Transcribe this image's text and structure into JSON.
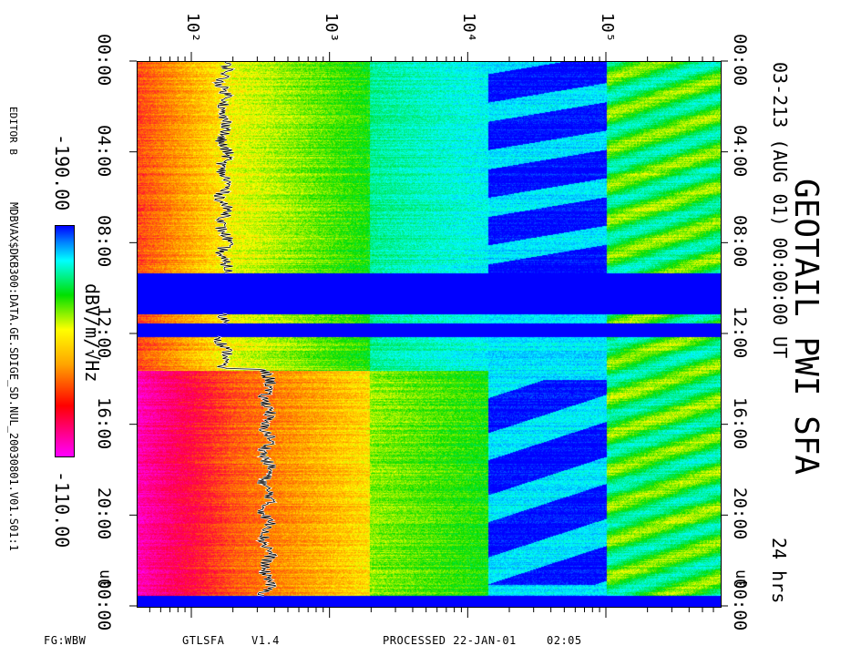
{
  "header": {
    "title": "GEOTAIL PWI SFA",
    "subtitle": "03-213 (AUG 01) 00:00:00 UT",
    "duration": "24 hrs"
  },
  "side": {
    "editor": "EDITOR B",
    "data_path": "MDBVAX$DKB300:DATA.GE.SDIGE_SD.NUL_20030801.V01.S01:1",
    "colorbar_min": "-190.00",
    "colorbar_max": "-110.00",
    "colorbar_unit": "dBV/m/√Hz"
  },
  "footer": {
    "fg": "FG:WBW",
    "program": "GTLSFA",
    "version": "V1.4",
    "processed": "PROCESSED 22-JAN-01",
    "processed_time": "02:05"
  },
  "colors": {
    "background": "#ffffff",
    "data_gap": "#0000ff",
    "colorbar": [
      "#ff00ff",
      "#ff0000",
      "#ffa500",
      "#ffff00",
      "#00e000",
      "#00ffff",
      "#0000ff"
    ]
  },
  "chart_data": {
    "type": "heatmap",
    "title": "GEOTAIL PWI SFA",
    "xscale": "log",
    "x_tick_labels": [
      "10²",
      "10³",
      "10⁴",
      "10⁵"
    ],
    "x_ticks": [
      100,
      1000,
      10000,
      100000
    ],
    "y_tick_labels_left": [
      "00:00",
      "04:00",
      "08:00",
      "12:00",
      "16:00",
      "20:00",
      "00:00"
    ],
    "y_tick_labels_right": [
      "00:00",
      "04:00",
      "08:00",
      "12:00",
      "16:00",
      "20:00",
      "00:00"
    ],
    "y_right_ut_label": "UT",
    "y_left_ut_label": "UT",
    "ylim_hours": [
      0,
      24
    ],
    "colorbar": {
      "min": -190.0,
      "max": -110.0,
      "unit": "dBV/m/√Hz"
    },
    "data_gaps_hours": [
      [
        9.3,
        11.1
      ],
      [
        11.5,
        12.1
      ],
      [
        23.5,
        24.0
      ]
    ],
    "grid": false
  }
}
